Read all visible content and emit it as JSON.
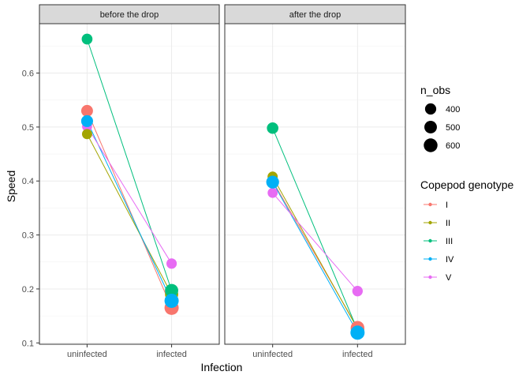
{
  "chart_data": {
    "type": "scatter",
    "ylabel": "Speed",
    "xlabel": "Infection",
    "categories": [
      "uninfected",
      "infected"
    ],
    "ylim": [
      0.0975,
      0.6915
    ],
    "y_ticks": [
      0.1,
      0.2,
      0.3,
      0.4,
      0.5,
      0.6
    ],
    "y_tick_labels": [
      "0.1",
      "0.2",
      "0.3",
      "0.4",
      "0.5",
      "0.6"
    ],
    "grid": true,
    "facets": [
      {
        "label": "before the drop",
        "series": [
          {
            "name": "I",
            "color": "#F8766D",
            "values": [
              0.53,
              0.165
            ],
            "n_obs": [
              440,
              640
            ]
          },
          {
            "name": "II",
            "color": "#A3A500",
            "values": [
              0.487,
              0.19
            ],
            "n_obs": [
              330,
              560
            ]
          },
          {
            "name": "III",
            "color": "#00BF7D",
            "values": [
              0.663,
              0.197
            ],
            "n_obs": [
              370,
              560
            ]
          },
          {
            "name": "IV",
            "color": "#00B0F6",
            "values": [
              0.511,
              0.178
            ],
            "n_obs": [
              450,
              640
            ]
          },
          {
            "name": "V",
            "color": "#E76BF3",
            "values": [
              0.501,
              0.247
            ],
            "n_obs": [
              320,
              340
            ]
          }
        ]
      },
      {
        "label": "after the drop",
        "series": [
          {
            "name": "I",
            "color": "#F8766D",
            "values": [
              0.4,
              0.128
            ],
            "n_obs": [
              330,
              590
            ]
          },
          {
            "name": "II",
            "color": "#A3A500",
            "values": [
              0.408,
              0.126
            ],
            "n_obs": [
              330,
              570
            ]
          },
          {
            "name": "III",
            "color": "#00BF7D",
            "values": [
              0.498,
              0.124
            ],
            "n_obs": [
              420,
              560
            ]
          },
          {
            "name": "IV",
            "color": "#00B0F6",
            "values": [
              0.398,
              0.119
            ],
            "n_obs": [
              520,
              640
            ]
          },
          {
            "name": "V",
            "color": "#E76BF3",
            "values": [
              0.378,
              0.196
            ],
            "n_obs": [
              320,
              350
            ]
          }
        ]
      }
    ],
    "legend": {
      "placement": "right",
      "size": {
        "title": "n_obs",
        "breaks": [
          400,
          500,
          600
        ],
        "labels": [
          "400",
          "500",
          "600"
        ]
      },
      "color": {
        "title": "Copepod genotype",
        "items": [
          {
            "label": "I",
            "color": "#F8766D"
          },
          {
            "label": "II",
            "color": "#A3A500"
          },
          {
            "label": "III",
            "color": "#00BF7D"
          },
          {
            "label": "IV",
            "color": "#00B0F6"
          },
          {
            "label": "V",
            "color": "#E76BF3"
          }
        ]
      }
    }
  }
}
